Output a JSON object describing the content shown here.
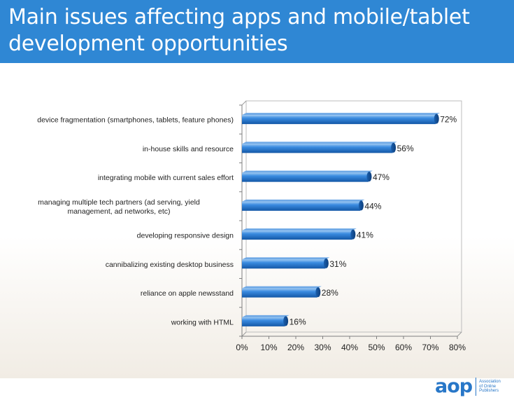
{
  "header": {
    "title": "Main issues affecting apps and mobile/tablet development opportunities"
  },
  "chart_data": {
    "type": "bar",
    "orientation": "horizontal",
    "categories": [
      "device fragmentation (smartphones, tablets, feature phones)",
      "in-house skills and resource",
      "integrating  mobile with current sales effort",
      "managing multiple tech partners (ad serving, yield management, ad networks, etc)",
      "developing responsive design",
      "cannibalizing existing desktop business",
      "reliance on apple newsstand",
      "working with HTML"
    ],
    "values": [
      72,
      56,
      47,
      44,
      41,
      31,
      28,
      16
    ],
    "data_labels": [
      "72%",
      "56%",
      "47%",
      "44%",
      "41%",
      "31%",
      "28%",
      "16%"
    ],
    "xlim": [
      0,
      80
    ],
    "x_ticks": [
      0,
      10,
      20,
      30,
      40,
      50,
      60,
      70,
      80
    ],
    "x_tick_labels": [
      "0%",
      "10%",
      "20%",
      "30%",
      "40%",
      "50%",
      "60%",
      "70%",
      "80%"
    ],
    "grid": false,
    "bar_color": "#2f7fd6",
    "title": "",
    "xlabel": "",
    "ylabel": ""
  },
  "logo": {
    "word": "aop",
    "sub": [
      "Association",
      "of Online",
      "Publishers"
    ]
  }
}
